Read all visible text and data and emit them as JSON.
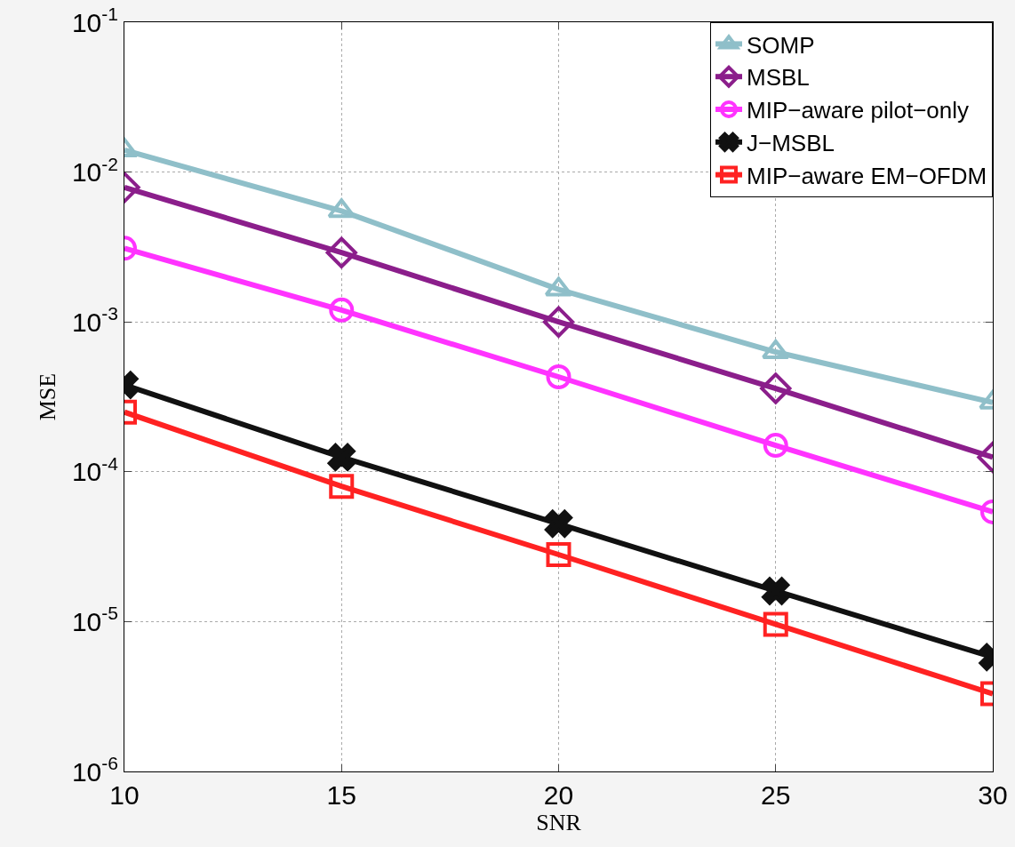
{
  "chart_data": {
    "type": "line",
    "xlabel": "SNR",
    "ylabel": "MSE",
    "log": "y",
    "x": [
      10,
      15,
      20,
      25,
      30
    ],
    "xlim": [
      10,
      30
    ],
    "xticks": [
      10,
      15,
      20,
      25,
      30
    ],
    "ylim": [
      1e-06,
      0.1
    ],
    "yticks": [
      {
        "value": 1e-06,
        "label": "10$^{-6}$"
      },
      {
        "value": 1e-05,
        "label": "10$^{-5}$"
      },
      {
        "value": 0.0001,
        "label": "10$^{-4}$"
      },
      {
        "value": 0.001,
        "label": "10$^{-3}$"
      },
      {
        "value": 0.01,
        "label": "10$^{-2}$"
      },
      {
        "value": 0.1,
        "label": "10$^{-1}$"
      }
    ],
    "grid": true,
    "legend": "top right",
    "line_style": "solid",
    "series": [
      {
        "name": "SOMP",
        "color": "#8fbfc9",
        "marker": "triangle",
        "values": [
          0.014,
          0.0055,
          0.00165,
          0.00063,
          0.00029
        ]
      },
      {
        "name": "MSBL",
        "color": "#8b1e8b",
        "marker": "diamond",
        "values": [
          0.0079,
          0.0029,
          0.001,
          0.00036,
          0.000125
        ]
      },
      {
        "name": "MIP−aware pilot−only",
        "color": "#ff33ff",
        "marker": "circle",
        "values": [
          0.0031,
          0.0012,
          0.00043,
          0.00015,
          5.4e-05
        ]
      },
      {
        "name": "J−MSBL",
        "color": "#111111",
        "marker": "cross",
        "values": [
          0.00038,
          0.000125,
          4.5e-05,
          1.6e-05,
          5.8e-06
        ]
      },
      {
        "name": "MIP−aware EM−OFDM",
        "color": "#ff2222",
        "marker": "square",
        "values": [
          0.00025,
          8e-05,
          2.8e-05,
          9.6e-06,
          3.3e-06
        ]
      }
    ]
  }
}
